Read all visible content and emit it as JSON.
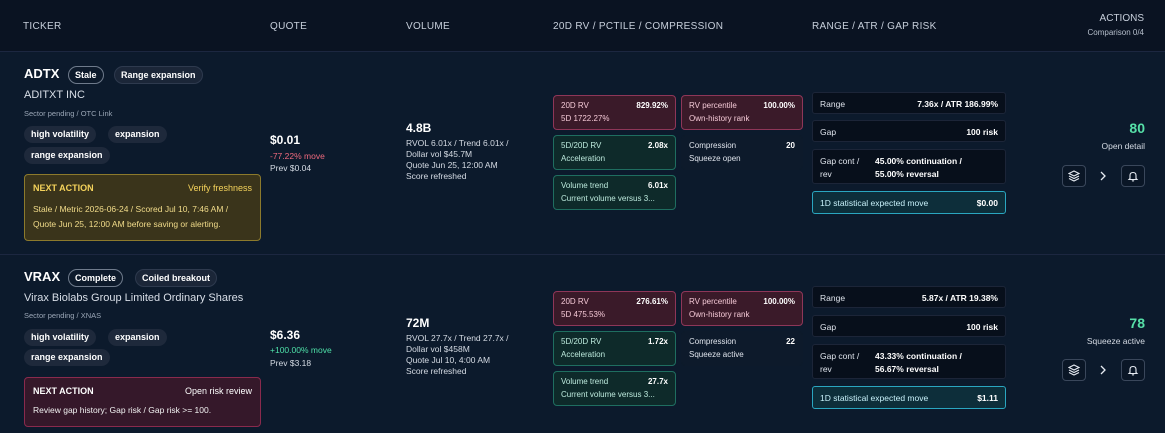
{
  "header": {
    "col_ticker": "TICKER",
    "col_quote": "QUOTE",
    "col_volume": "VOLUME",
    "col_rv": "20D RV / PCTILE / COMPRESSION",
    "col_range": "RANGE / ATR / GAP RISK",
    "col_actions": "ACTIONS",
    "comparison": "Comparison 0/4"
  },
  "rows": [
    {
      "ticker": "ADTX",
      "status": "Stale",
      "setup": "Range expansion",
      "name": "ADITXT INC",
      "sector": "Sector pending / OTC Link",
      "tags": [
        "high volatility",
        "expansion",
        "range expansion"
      ],
      "next_action": {
        "label": "NEXT ACTION",
        "title": "Verify freshness",
        "body": "Stale / Metric 2026-06-24 / Scored Jul 10, 7:46 AM / Quote Jun 25, 12:00 AM before saving or alerting."
      },
      "quote": {
        "price": "$0.01",
        "move": "-77.22% move",
        "prev": "Prev $0.04"
      },
      "volume": {
        "value": "4.8B",
        "l1": "RVOL 6.01x / Trend 6.01x /",
        "l2": "Dollar vol $45.7M",
        "l3": "Quote Jun 25, 12:00 AM",
        "l4": "Score refreshed"
      },
      "rv": {
        "rv20_label": "20D RV",
        "rv20_value": "829.92%",
        "rv5": "5D 1722.27%",
        "pct_label": "RV percentile",
        "pct_value": "100.00%",
        "pct_sub": "Own-history rank",
        "ratio_label": "5D/20D RV",
        "ratio_value": "2.08x",
        "ratio_sub": "Acceleration",
        "comp_label": "Compression",
        "comp_value": "20",
        "comp_sub": "Squeeze open",
        "vt_label": "Volume trend",
        "vt_value": "6.01x",
        "vt_sub": "Current volume versus 3..."
      },
      "range": {
        "range_label": "Range",
        "range_value": "7.36x / ATR 186.99%",
        "gap_label": "Gap",
        "gap_value": "100 risk",
        "gc_label1": "Gap cont /",
        "gc_label2": "rev",
        "gc_value1": "45.00% continuation /",
        "gc_value2": "55.00% reversal",
        "exp_label": "1D statistical expected move",
        "exp_value": "$0.00"
      },
      "score": "80",
      "score_label": "Open detail"
    },
    {
      "ticker": "VRAX",
      "status": "Complete",
      "setup": "Coiled breakout",
      "name": "Virax Biolabs Group Limited Ordinary Shares",
      "sector": "Sector pending / XNAS",
      "tags": [
        "high volatility",
        "expansion",
        "range expansion"
      ],
      "next_action": {
        "label": "NEXT ACTION",
        "title": "Open risk review",
        "body": "Review gap history; Gap risk / Gap risk >= 100."
      },
      "quote": {
        "price": "$6.36",
        "move": "+100.00% move",
        "prev": "Prev $3.18"
      },
      "volume": {
        "value": "72M",
        "l1": "RVOL 27.7x / Trend 27.7x /",
        "l2": "Dollar vol $458M",
        "l3": "Quote Jul 10, 4:00 AM",
        "l4": "Score refreshed"
      },
      "rv": {
        "rv20_label": "20D RV",
        "rv20_value": "276.61%",
        "rv5": "5D 475.53%",
        "pct_label": "RV percentile",
        "pct_value": "100.00%",
        "pct_sub": "Own-history rank",
        "ratio_label": "5D/20D RV",
        "ratio_value": "1.72x",
        "ratio_sub": "Acceleration",
        "comp_label": "Compression",
        "comp_value": "22",
        "comp_sub": "Squeeze active",
        "vt_label": "Volume trend",
        "vt_value": "27.7x",
        "vt_sub": "Current volume versus 3..."
      },
      "range": {
        "range_label": "Range",
        "range_value": "5.87x / ATR 19.38%",
        "gap_label": "Gap",
        "gap_value": "100 risk",
        "gc_label1": "Gap cont /",
        "gc_label2": "rev",
        "gc_value1": "43.33% continuation /",
        "gc_value2": "56.67% reversal",
        "exp_label": "1D statistical expected move",
        "exp_value": "$1.11"
      },
      "score": "78",
      "score_label": "Squeeze active"
    }
  ],
  "icons": [
    "layers-icon",
    "chevron-right-icon",
    "bell-icon"
  ]
}
